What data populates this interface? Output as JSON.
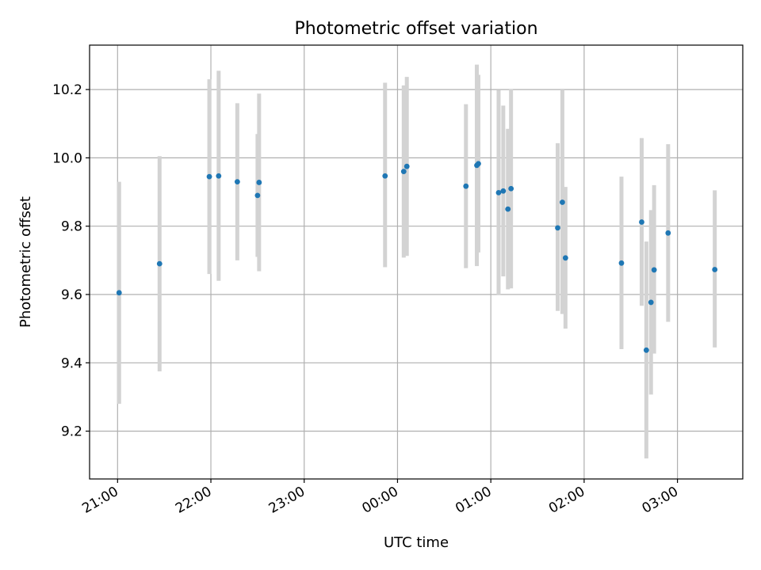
{
  "chart_data": {
    "type": "scatter",
    "title": "Photometric offset variation",
    "xlabel": "UTC time",
    "ylabel": "Photometric offset",
    "x_tick_labels": [
      "21:00",
      "22:00",
      "23:00",
      "00:00",
      "01:00",
      "02:00",
      "03:00"
    ],
    "y_tick_labels": [
      "9.2",
      "9.4",
      "9.6",
      "9.8",
      "10.0",
      "10.2"
    ],
    "y_ticks": [
      9.2,
      9.4,
      9.6,
      9.8,
      10.0,
      10.2
    ],
    "xlim": [
      "20:42",
      "03:42"
    ],
    "ylim": [
      9.06,
      10.33
    ],
    "grid": true,
    "colors": {
      "point": "#1f77b4",
      "errorbar": "#d3d3d3"
    },
    "points": [
      {
        "x": "21:01",
        "y": 9.605,
        "yerr_low": 9.28,
        "yerr_high": 9.93
      },
      {
        "x": "21:27",
        "y": 9.69,
        "yerr_low": 9.375,
        "yerr_high": 10.005
      },
      {
        "x": "21:59",
        "y": 9.945,
        "yerr_low": 9.66,
        "yerr_high": 10.23
      },
      {
        "x": "22:05",
        "y": 9.947,
        "yerr_low": 9.64,
        "yerr_high": 10.255
      },
      {
        "x": "22:17",
        "y": 9.93,
        "yerr_low": 9.7,
        "yerr_high": 10.16
      },
      {
        "x": "22:30",
        "y": 9.89,
        "yerr_low": 9.71,
        "yerr_high": 10.07
      },
      {
        "x": "22:31",
        "y": 9.928,
        "yerr_low": 9.668,
        "yerr_high": 10.188
      },
      {
        "x": "23:52",
        "y": 9.947,
        "yerr_low": 9.68,
        "yerr_high": 10.22
      },
      {
        "x": "00:04",
        "y": 9.96,
        "yerr_low": 9.708,
        "yerr_high": 10.212
      },
      {
        "x": "00:06",
        "y": 9.975,
        "yerr_low": 9.713,
        "yerr_high": 10.237
      },
      {
        "x": "00:44",
        "y": 9.917,
        "yerr_low": 9.677,
        "yerr_high": 10.157
      },
      {
        "x": "00:51",
        "y": 9.978,
        "yerr_low": 9.683,
        "yerr_high": 10.273
      },
      {
        "x": "00:52",
        "y": 9.983,
        "yerr_low": 9.723,
        "yerr_high": 10.243
      },
      {
        "x": "01:05",
        "y": 9.898,
        "yerr_low": 9.598,
        "yerr_high": 10.198
      },
      {
        "x": "01:08",
        "y": 9.903,
        "yerr_low": 9.653,
        "yerr_high": 10.153
      },
      {
        "x": "01:11",
        "y": 9.85,
        "yerr_low": 9.615,
        "yerr_high": 10.085
      },
      {
        "x": "01:13",
        "y": 9.91,
        "yerr_low": 9.618,
        "yerr_high": 10.202
      },
      {
        "x": "01:43",
        "y": 9.795,
        "yerr_low": 9.552,
        "yerr_high": 10.043
      },
      {
        "x": "01:46",
        "y": 9.87,
        "yerr_low": 9.543,
        "yerr_high": 10.2
      },
      {
        "x": "01:48",
        "y": 9.707,
        "yerr_low": 9.5,
        "yerr_high": 9.915
      },
      {
        "x": "02:24",
        "y": 9.692,
        "yerr_low": 9.44,
        "yerr_high": 9.945
      },
      {
        "x": "02:37",
        "y": 9.812,
        "yerr_low": 9.567,
        "yerr_high": 10.058
      },
      {
        "x": "02:40",
        "y": 9.437,
        "yerr_low": 9.12,
        "yerr_high": 9.755
      },
      {
        "x": "02:43",
        "y": 9.577,
        "yerr_low": 9.307,
        "yerr_high": 9.847
      },
      {
        "x": "02:45",
        "y": 9.672,
        "yerr_low": 9.427,
        "yerr_high": 9.92
      },
      {
        "x": "02:54",
        "y": 9.78,
        "yerr_low": 9.52,
        "yerr_high": 10.04
      },
      {
        "x": "03:24",
        "y": 9.673,
        "yerr_low": 9.445,
        "yerr_high": 9.905
      }
    ]
  }
}
